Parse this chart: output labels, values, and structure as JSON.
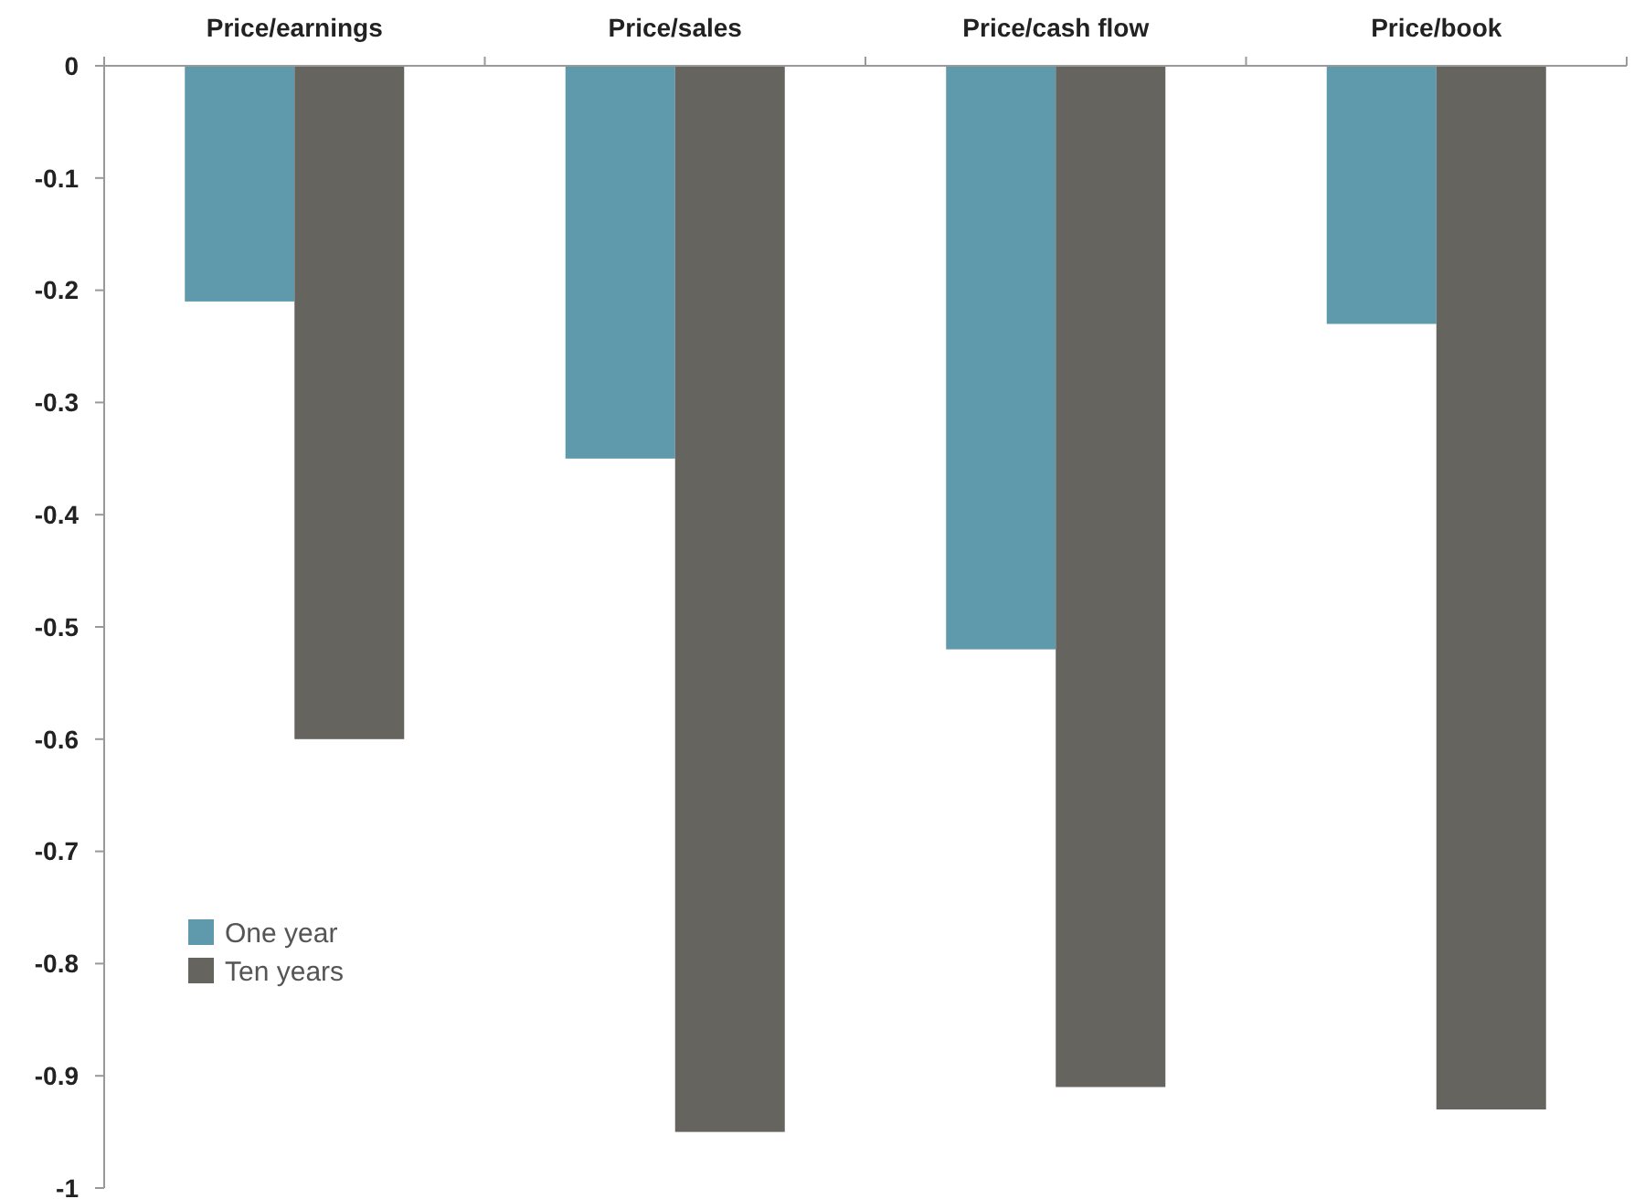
{
  "chart_data": {
    "type": "bar",
    "categories": [
      "Price/earnings",
      "Price/sales",
      "Price/cash flow",
      "Price/book"
    ],
    "series": [
      {
        "name": "One year",
        "color": "#5e9aab",
        "values": [
          -0.21,
          -0.35,
          -0.52,
          -0.23
        ]
      },
      {
        "name": "Ten years",
        "color": "#66645f",
        "values": [
          -0.6,
          -0.95,
          -0.91,
          -0.93
        ]
      }
    ],
    "ylim": [
      -1,
      0
    ],
    "yticks": [
      0,
      -0.1,
      -0.2,
      -0.3,
      -0.4,
      -0.5,
      -0.6,
      -0.7,
      -0.8,
      -0.9,
      -1
    ],
    "grid": false,
    "legend": "bottom left"
  }
}
